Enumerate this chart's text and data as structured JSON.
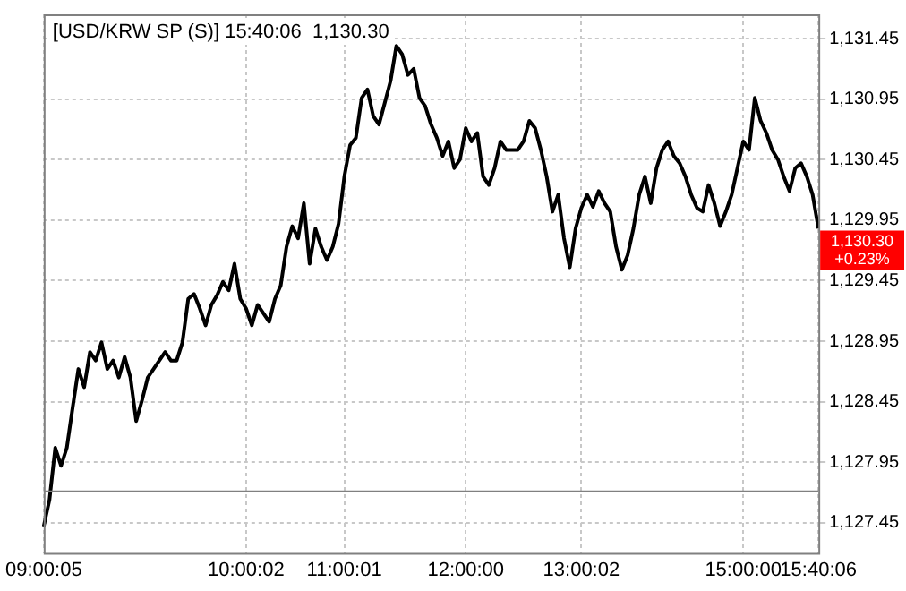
{
  "chart_data": {
    "type": "line",
    "title": "[USD/KRW SP (S)] 15:40:06  1,130.30",
    "categories": [
      "09:00:05",
      null,
      null,
      null,
      null,
      null,
      null,
      null,
      null,
      null,
      null,
      null,
      null,
      null,
      null,
      null,
      null,
      null,
      null,
      null,
      null,
      null,
      null,
      null,
      null,
      null,
      null,
      null,
      null,
      null,
      null,
      null,
      null,
      null,
      null,
      "10:00:02",
      null,
      null,
      null,
      null,
      null,
      null,
      null,
      null,
      null,
      null,
      null,
      null,
      null,
      null,
      null,
      null,
      "11:00:01",
      null,
      null,
      null,
      null,
      null,
      null,
      null,
      null,
      null,
      null,
      null,
      null,
      null,
      null,
      null,
      null,
      null,
      null,
      null,
      null,
      "12:00:00",
      null,
      null,
      null,
      null,
      null,
      null,
      null,
      null,
      null,
      null,
      null,
      null,
      null,
      null,
      null,
      null,
      null,
      null,
      null,
      "13:00:02",
      null,
      null,
      null,
      null,
      null,
      null,
      null,
      null,
      null,
      null,
      null,
      null,
      null,
      null,
      null,
      null,
      null,
      null,
      null,
      null,
      null,
      null,
      null,
      null,
      null,
      null,
      null,
      "15:00:00",
      null,
      null,
      null,
      null,
      null,
      null,
      null,
      null,
      null,
      null,
      null,
      null,
      "15:40:06"
    ],
    "values": [
      1127.42,
      1127.64,
      1128.07,
      1127.92,
      1128.07,
      1128.4,
      1128.72,
      1128.57,
      1128.86,
      1128.79,
      1128.94,
      1128.72,
      1128.79,
      1128.65,
      1128.82,
      1128.65,
      1128.29,
      1128.46,
      1128.65,
      1128.72,
      1128.79,
      1128.86,
      1128.79,
      1128.79,
      1128.94,
      1129.3,
      1129.34,
      1129.22,
      1129.08,
      1129.25,
      1129.33,
      1129.44,
      1129.37,
      1129.59,
      1129.3,
      1129.22,
      1129.08,
      1129.25,
      1129.18,
      1129.11,
      1129.3,
      1129.41,
      1129.73,
      1129.9,
      1129.8,
      1130.09,
      1129.59,
      1129.88,
      1129.73,
      1129.62,
      1129.73,
      1129.92,
      1130.31,
      1130.57,
      1130.63,
      1130.96,
      1131.03,
      1130.81,
      1130.74,
      1130.92,
      1131.1,
      1131.39,
      1131.32,
      1131.15,
      1131.2,
      1130.96,
      1130.89,
      1130.74,
      1130.63,
      1130.48,
      1130.6,
      1130.38,
      1130.45,
      1130.71,
      1130.6,
      1130.67,
      1130.31,
      1130.24,
      1130.38,
      1130.6,
      1130.53,
      1130.53,
      1130.53,
      1130.6,
      1130.77,
      1130.71,
      1130.53,
      1130.31,
      1130.02,
      1130.16,
      1129.8,
      1129.56,
      1129.88,
      1130.05,
      1130.16,
      1130.06,
      1130.19,
      1130.09,
      1130.02,
      1129.73,
      1129.54,
      1129.66,
      1129.88,
      1130.16,
      1130.31,
      1130.09,
      1130.38,
      1130.53,
      1130.6,
      1130.48,
      1130.42,
      1130.31,
      1130.16,
      1130.05,
      1130.02,
      1130.24,
      1130.09,
      1129.9,
      1130.02,
      1130.16,
      1130.38,
      1130.6,
      1130.53,
      1130.96,
      1130.77,
      1130.67,
      1130.53,
      1130.45,
      1130.31,
      1130.19,
      1130.38,
      1130.42,
      1130.31,
      1130.16,
      1129.88
    ],
    "color": "#000000",
    "ylim": [
      1127.2,
      1131.65
    ],
    "yticks": [
      {
        "value": 1127.45,
        "label": "1,127.45"
      },
      {
        "value": 1127.95,
        "label": "1,127.95"
      },
      {
        "value": 1128.45,
        "label": "1,128.45"
      },
      {
        "value": 1128.95,
        "label": "1,128.95"
      },
      {
        "value": 1129.45,
        "label": "1,129.45"
      },
      {
        "value": 1129.95,
        "label": "1,129.95"
      },
      {
        "value": 1130.45,
        "label": "1,130.45"
      },
      {
        "value": 1130.95,
        "label": "1,130.95"
      },
      {
        "value": 1131.45,
        "label": "1,131.45"
      }
    ],
    "ref_lines": [
      {
        "axis": "y",
        "value": 1127.71,
        "color": "#808080"
      }
    ],
    "annotations": [
      "1,130.30",
      "+0.23%"
    ],
    "grid": true,
    "legend": false,
    "marker": "none",
    "line_style": "solid"
  }
}
